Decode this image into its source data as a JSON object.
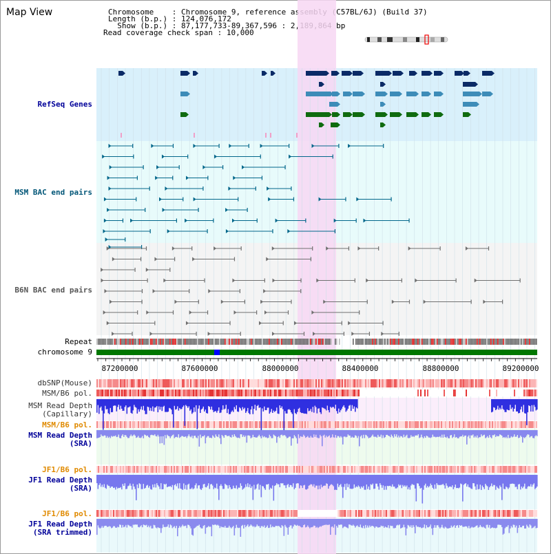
{
  "header": {
    "title": "Map View",
    "chromosome_key": "Chromosome",
    "chromosome_value": "Chromosome 9, reference assembly (C57BL/6J) (Build 37)",
    "length_key": "Length (b.p.)",
    "length_value": "124,076,172",
    "show_key": "Show (b.p.)",
    "show_value": "87,177,733-89,367,596 : 2,189,864 bp",
    "span_key": "Read coverage check span",
    "span_value": "10,000"
  },
  "tracks": {
    "refseq": "RefSeq Genes",
    "msm_bac": "MSM BAC end pairs",
    "b6n_bac": "B6N BAC end pairs",
    "repeat": "Repeat",
    "chromosome": "chromosome 9",
    "dbsnp": "dbSNP(Mouse)",
    "msm_b6_pol": "MSM/B6 pol.",
    "msm_read_depth_cap_1": "MSM Read Depth",
    "msm_read_depth_cap_2": "(Capillary)",
    "msm_b6_pol_2": "MSM/B6 pol.",
    "msm_read_depth_sra_1": "MSM Read Depth",
    "msm_read_depth_sra_2": "(SRA)",
    "jf1_b6_pol": "JF1/B6 pol.",
    "jf1_read_depth_1": "JF1 Read Depth",
    "jf1_read_depth_2": "(SRA)",
    "jf1_b6_pol_2": "JF1/B6 pol.",
    "jf1_trim_1": "JF1 Read Depth",
    "jf1_trim_2": "(SRA trimmed)"
  },
  "axis": {
    "ticks": [
      "87200000",
      "87600000",
      "88000000",
      "88400000",
      "88800000",
      "89200000"
    ]
  },
  "colors": {
    "refseq_bg": "#d9f0fb",
    "bac_bg": "#e8fbfb",
    "highlight": "#f7d7f3",
    "msm_label": "#005577",
    "b6n_label": "#555555",
    "orange_label": "#e08a00",
    "blue_label": "#000099",
    "chromosome_green": "#007700"
  }
}
